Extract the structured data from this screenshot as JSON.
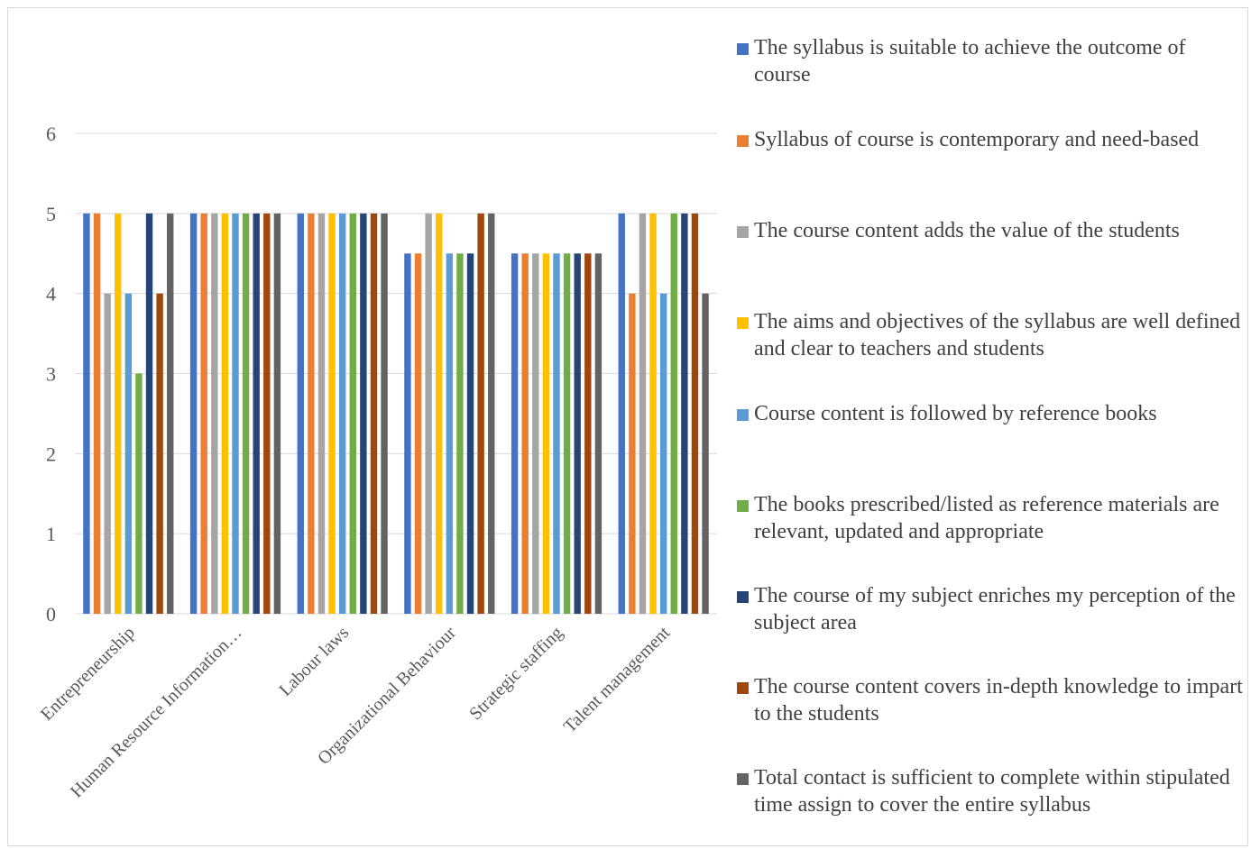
{
  "chart_data": {
    "type": "bar",
    "categories": [
      "Entrepreneurship",
      "Human Resource Information…",
      "Labour laws",
      "Organizational Behaviour",
      "Strategic staffing",
      "Talent management"
    ],
    "ylim": [
      0,
      6
    ],
    "yticks": [
      0,
      1,
      2,
      3,
      4,
      5,
      6
    ],
    "grid": true,
    "legend_position": "right",
    "series": [
      {
        "name": "The syllabus is suitable to achieve the outcome of course",
        "color": "#4472c4",
        "values": [
          5,
          5,
          5,
          4.5,
          4.5,
          5
        ]
      },
      {
        "name": "Syllabus of course is contemporary and need-based",
        "color": "#ed7d31",
        "values": [
          5,
          5,
          5,
          4.5,
          4.5,
          4
        ]
      },
      {
        "name": "The course content adds the value of the students",
        "color": "#a5a5a5",
        "values": [
          4,
          5,
          5,
          5,
          4.5,
          5
        ]
      },
      {
        "name": "The aims and objectives of the syllabus are well defined and clear to teachers and students",
        "color": "#ffc000",
        "values": [
          5,
          5,
          5,
          5,
          4.5,
          5
        ]
      },
      {
        "name": "Course content is followed by reference books",
        "color": "#5b9bd5",
        "values": [
          4,
          5,
          5,
          4.5,
          4.5,
          4
        ]
      },
      {
        "name": "The books prescribed/listed as reference materials are relevant, updated and appropriate",
        "color": "#70ad47",
        "values": [
          3,
          5,
          5,
          4.5,
          4.5,
          5
        ]
      },
      {
        "name": "The course of my subject enriches my perception of the subject area",
        "color": "#264478",
        "values": [
          5,
          5,
          5,
          4.5,
          4.5,
          5
        ]
      },
      {
        "name": "The course content covers in-depth knowledge to impart to the students",
        "color": "#9e480e",
        "values": [
          4,
          5,
          5,
          5,
          4.5,
          5
        ]
      },
      {
        "name": "Total contact is sufficient to complete within stipulated time assign to cover the entire syllabus",
        "color": "#636363",
        "values": [
          5,
          5,
          5,
          5,
          4.5,
          4
        ]
      }
    ]
  }
}
